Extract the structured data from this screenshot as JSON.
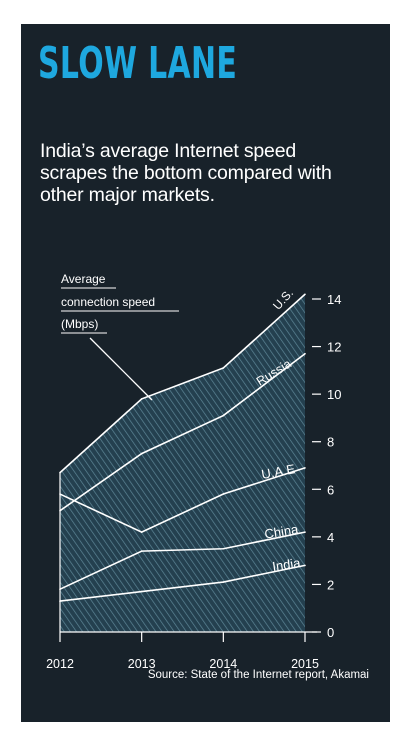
{
  "headline": "SLOW LANE",
  "subtitle": "India’s average Internet speed scrapes the bottom compared with other major markets.",
  "source": "Source: State of the Internet report, Akamai",
  "colors": {
    "background": "#18222a",
    "headline": "#1ea8df",
    "text": "#ffffff",
    "area": "#24404f",
    "hatch": "#5e8797"
  },
  "chart_data": {
    "type": "area",
    "ylabel": "Average connection speed (Mbps)",
    "ylabel_lines": [
      "Average",
      "connection speed",
      "(Mbps)"
    ],
    "x": [
      2012,
      2013,
      2014,
      2015
    ],
    "xticks": [
      "2012",
      "2013",
      "2014",
      "2015"
    ],
    "ylim": [
      0,
      14
    ],
    "yticks": [
      0,
      2,
      4,
      6,
      8,
      10,
      12,
      14
    ],
    "ytick_labels": [
      "0",
      "2",
      "4",
      "6",
      "8",
      "10",
      "12",
      "14"
    ],
    "y_axis_side": "right",
    "grid": false,
    "series": [
      {
        "name": "U.S.",
        "values": [
          6.7,
          9.8,
          11.1,
          14.2
        ]
      },
      {
        "name": "Russia",
        "values": [
          5.1,
          7.5,
          9.1,
          11.7
        ]
      },
      {
        "name": "U.A.E",
        "values": [
          5.8,
          4.2,
          5.8,
          6.9
        ]
      },
      {
        "name": "China",
        "values": [
          1.8,
          3.4,
          3.5,
          4.2
        ]
      },
      {
        "name": "India",
        "values": [
          1.3,
          1.7,
          2.1,
          2.8
        ]
      }
    ]
  }
}
